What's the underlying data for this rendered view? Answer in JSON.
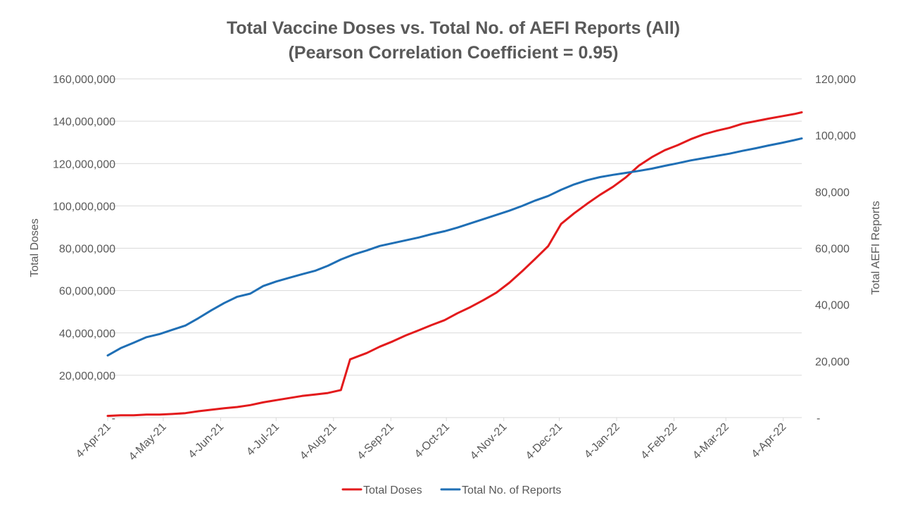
{
  "chart_data": {
    "type": "line",
    "title_line1": "Total Vaccine Doses vs. Total No. of AEFI Reports (All)",
    "title_line2": "(Pearson Correlation Coefficient = 0.95)",
    "ylabel_left": "Total Doses",
    "ylabel_right": "Total AEFI Reports",
    "ylim_left": [
      0,
      160000000
    ],
    "ylim_right": [
      0,
      120000
    ],
    "yticks_left": [
      "-",
      "20,000,000",
      "40,000,000",
      "60,000,000",
      "80,000,000",
      "100,000,000",
      "120,000,000",
      "140,000,000",
      "160,000,000"
    ],
    "yticks_right": [
      "-",
      "20,000",
      "40,000",
      "60,000",
      "80,000",
      "100,000",
      "120,000"
    ],
    "xlim": [
      "2021-04-04",
      "2022-04-14"
    ],
    "xtick_dates": [
      "2021-04-04",
      "2021-05-04",
      "2021-06-04",
      "2021-07-04",
      "2021-08-04",
      "2021-09-04",
      "2021-10-04",
      "2021-11-04",
      "2021-12-04",
      "2022-01-04",
      "2022-02-04",
      "2022-03-04",
      "2022-04-04"
    ],
    "xtick_labels": [
      "4-Apr-21",
      "4-May-21",
      "4-Jun-21",
      "4-Jul-21",
      "4-Aug-21",
      "4-Sep-21",
      "4-Oct-21",
      "4-Nov-21",
      "4-Dec-21",
      "4-Jan-22",
      "4-Feb-22",
      "4-Mar-22",
      "4-Apr-22"
    ],
    "grid": true,
    "legend_position": "bottom",
    "series": [
      {
        "name": "Total Doses",
        "axis": "left",
        "color": "#e31a1c",
        "points": [
          [
            "2021-04-04",
            800000
          ],
          [
            "2021-04-11",
            1100000
          ],
          [
            "2021-04-18",
            1100000
          ],
          [
            "2021-04-25",
            1400000
          ],
          [
            "2021-05-02",
            1400000
          ],
          [
            "2021-05-09",
            1700000
          ],
          [
            "2021-05-16",
            2100000
          ],
          [
            "2021-05-23",
            3000000
          ],
          [
            "2021-05-30",
            3700000
          ],
          [
            "2021-06-06",
            4400000
          ],
          [
            "2021-06-13",
            5000000
          ],
          [
            "2021-06-20",
            5900000
          ],
          [
            "2021-06-27",
            7200000
          ],
          [
            "2021-07-04",
            8200000
          ],
          [
            "2021-07-11",
            9200000
          ],
          [
            "2021-07-18",
            10200000
          ],
          [
            "2021-07-25",
            10900000
          ],
          [
            "2021-08-01",
            11600000
          ],
          [
            "2021-08-08",
            13000000
          ],
          [
            "2021-08-13",
            27500000
          ],
          [
            "2021-08-22",
            30500000
          ],
          [
            "2021-08-29",
            33500000
          ],
          [
            "2021-09-05",
            36000000
          ],
          [
            "2021-09-12",
            38800000
          ],
          [
            "2021-09-19",
            41200000
          ],
          [
            "2021-09-26",
            43700000
          ],
          [
            "2021-10-03",
            46000000
          ],
          [
            "2021-10-10",
            49300000
          ],
          [
            "2021-10-17",
            52200000
          ],
          [
            "2021-10-24",
            55500000
          ],
          [
            "2021-10-31",
            59000000
          ],
          [
            "2021-11-07",
            63700000
          ],
          [
            "2021-11-14",
            69200000
          ],
          [
            "2021-11-21",
            75000000
          ],
          [
            "2021-11-28",
            81000000
          ],
          [
            "2021-12-05",
            91500000
          ],
          [
            "2021-12-12",
            96500000
          ],
          [
            "2021-12-19",
            101000000
          ],
          [
            "2021-12-26",
            105200000
          ],
          [
            "2022-01-02",
            109000000
          ],
          [
            "2022-01-09",
            113500000
          ],
          [
            "2022-01-16",
            119000000
          ],
          [
            "2022-01-23",
            123000000
          ],
          [
            "2022-01-30",
            126300000
          ],
          [
            "2022-02-06",
            128700000
          ],
          [
            "2022-02-13",
            131500000
          ],
          [
            "2022-02-20",
            133800000
          ],
          [
            "2022-02-27",
            135500000
          ],
          [
            "2022-03-06",
            136900000
          ],
          [
            "2022-03-13",
            138800000
          ],
          [
            "2022-03-20",
            140000000
          ],
          [
            "2022-03-27",
            141200000
          ],
          [
            "2022-04-03",
            142300000
          ],
          [
            "2022-04-10",
            143400000
          ],
          [
            "2022-04-14",
            144200000
          ]
        ]
      },
      {
        "name": "Total No. of Reports",
        "axis": "right",
        "color": "#1f6fb5",
        "points": [
          [
            "2021-04-04",
            22000
          ],
          [
            "2021-04-11",
            24600
          ],
          [
            "2021-04-18",
            26500
          ],
          [
            "2021-04-25",
            28500
          ],
          [
            "2021-05-02",
            29600
          ],
          [
            "2021-05-09",
            31100
          ],
          [
            "2021-05-16",
            32600
          ],
          [
            "2021-05-23",
            35200
          ],
          [
            "2021-05-30",
            38000
          ],
          [
            "2021-06-06",
            40600
          ],
          [
            "2021-06-13",
            42800
          ],
          [
            "2021-06-20",
            43900
          ],
          [
            "2021-06-27",
            46600
          ],
          [
            "2021-07-04",
            48200
          ],
          [
            "2021-07-11",
            49500
          ],
          [
            "2021-07-18",
            50800
          ],
          [
            "2021-07-25",
            52000
          ],
          [
            "2021-08-01",
            53800
          ],
          [
            "2021-08-08",
            56000
          ],
          [
            "2021-08-15",
            57800
          ],
          [
            "2021-08-22",
            59200
          ],
          [
            "2021-08-29",
            60800
          ],
          [
            "2021-09-05",
            61800
          ],
          [
            "2021-09-12",
            62800
          ],
          [
            "2021-09-19",
            63800
          ],
          [
            "2021-09-26",
            65000
          ],
          [
            "2021-10-03",
            66000
          ],
          [
            "2021-10-10",
            67300
          ],
          [
            "2021-10-17",
            68800
          ],
          [
            "2021-10-24",
            70300
          ],
          [
            "2021-10-31",
            71800
          ],
          [
            "2021-11-07",
            73300
          ],
          [
            "2021-11-14",
            75000
          ],
          [
            "2021-11-21",
            76900
          ],
          [
            "2021-11-28",
            78500
          ],
          [
            "2021-12-05",
            80700
          ],
          [
            "2021-12-12",
            82600
          ],
          [
            "2021-12-19",
            84100
          ],
          [
            "2021-12-26",
            85200
          ],
          [
            "2022-01-02",
            86000
          ],
          [
            "2022-01-09",
            86700
          ],
          [
            "2022-01-16",
            87400
          ],
          [
            "2022-01-23",
            88200
          ],
          [
            "2022-01-30",
            89200
          ],
          [
            "2022-02-06",
            90100
          ],
          [
            "2022-02-13",
            91100
          ],
          [
            "2022-02-20",
            91900
          ],
          [
            "2022-02-27",
            92700
          ],
          [
            "2022-03-06",
            93500
          ],
          [
            "2022-03-13",
            94500
          ],
          [
            "2022-03-20",
            95400
          ],
          [
            "2022-03-27",
            96400
          ],
          [
            "2022-04-03",
            97300
          ],
          [
            "2022-04-10",
            98300
          ],
          [
            "2022-04-14",
            98900
          ]
        ]
      }
    ]
  }
}
